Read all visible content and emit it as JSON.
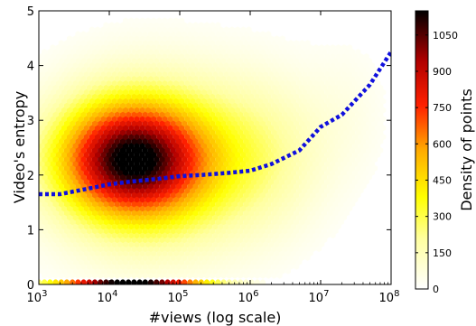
{
  "chart_data": {
    "type": "heatmap",
    "xlabel": "#views (log scale)",
    "ylabel": "Video's entropy",
    "x_scale": "log",
    "xlim": [
      1000,
      100000000
    ],
    "ylim": [
      0,
      5
    ],
    "x_ticks": [
      {
        "value": 1000,
        "base": "10",
        "exp": "3"
      },
      {
        "value": 10000,
        "base": "10",
        "exp": "4"
      },
      {
        "value": 100000,
        "base": "10",
        "exp": "5"
      },
      {
        "value": 1000000,
        "base": "10",
        "exp": "6"
      },
      {
        "value": 10000000,
        "base": "10",
        "exp": "7"
      },
      {
        "value": 100000000,
        "base": "10",
        "exp": "8"
      }
    ],
    "y_ticks": [
      "0",
      "1",
      "2",
      "3",
      "4",
      "5"
    ],
    "colorbar": {
      "label": "Density of points",
      "range": [
        0,
        1150
      ],
      "ticks": [
        "0",
        "150",
        "300",
        "450",
        "600",
        "750",
        "900",
        "1050"
      ],
      "colormap": "hot_r"
    },
    "density_peak": {
      "x": 20000,
      "y": 2.3
    },
    "trend_line": {
      "style": "dotted",
      "color": "#1010dd",
      "x": [
        1000,
        2000,
        5000,
        10000,
        20000,
        50000,
        100000,
        200000,
        500000,
        1000000,
        2000000,
        5000000,
        10000000,
        20000000,
        50000000,
        100000000
      ],
      "y": [
        1.65,
        1.65,
        1.75,
        1.83,
        1.88,
        1.93,
        1.98,
        2.0,
        2.04,
        2.08,
        2.2,
        2.45,
        2.88,
        3.1,
        3.65,
        4.25
      ]
    }
  }
}
